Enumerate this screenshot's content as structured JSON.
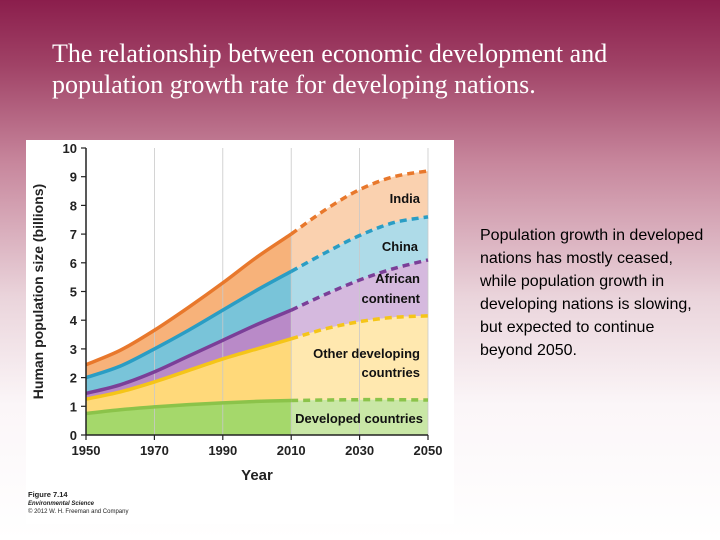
{
  "slide": {
    "title": "The relationship between economic development and population growth rate for developing nations.",
    "side_text": "Population growth in developed nations has mostly ceased, while population growth in developing nations is slowing, but expected to continue beyond 2050.",
    "caption": {
      "figure": "Figure 7.14",
      "book": "Environmental Science",
      "copyright": "© 2012 W. H. Freeman and Company"
    }
  },
  "chart_data": {
    "type": "area",
    "title": "",
    "xlabel": "Year",
    "ylabel": "Human population size (billions)",
    "x": [
      1950,
      1960,
      1970,
      1980,
      1990,
      2000,
      2010,
      2020,
      2030,
      2040,
      2050
    ],
    "xlim": [
      1950,
      2050
    ],
    "ylim": [
      0,
      10
    ],
    "x_ticks": [
      "1950",
      "1970",
      "1990",
      "2010",
      "2030",
      "2050"
    ],
    "y_ticks": [
      "0",
      "1",
      "2",
      "3",
      "4",
      "5",
      "6",
      "7",
      "8",
      "9",
      "10"
    ],
    "projection_start": 2010,
    "stacked": true,
    "series_cumulative": [
      {
        "name": "Developed countries",
        "color": "#8bc34a",
        "fill": "#a5d86b",
        "values": [
          0.75,
          0.88,
          0.98,
          1.06,
          1.12,
          1.17,
          1.2,
          1.22,
          1.23,
          1.23,
          1.22
        ]
      },
      {
        "name": "Other developing countries",
        "color": "#f5c518",
        "fill": "#ffd97a",
        "values": [
          1.25,
          1.5,
          1.85,
          2.25,
          2.65,
          3.0,
          3.35,
          3.7,
          3.95,
          4.1,
          4.15
        ]
      },
      {
        "name": "African continent",
        "color": "#7b3f98",
        "fill": "#b98ac8",
        "values": [
          1.45,
          1.75,
          2.2,
          2.75,
          3.3,
          3.85,
          4.35,
          4.9,
          5.4,
          5.8,
          6.1
        ]
      },
      {
        "name": "China",
        "color": "#2a9dc4",
        "fill": "#79c4d9",
        "values": [
          2.0,
          2.4,
          3.0,
          3.65,
          4.35,
          5.05,
          5.7,
          6.35,
          6.95,
          7.4,
          7.6
        ]
      },
      {
        "name": "India",
        "color": "#e8782c",
        "fill": "#f7b27a",
        "values": [
          2.45,
          2.95,
          3.65,
          4.45,
          5.3,
          6.2,
          7.0,
          7.85,
          8.55,
          9.0,
          9.2
        ]
      }
    ]
  }
}
